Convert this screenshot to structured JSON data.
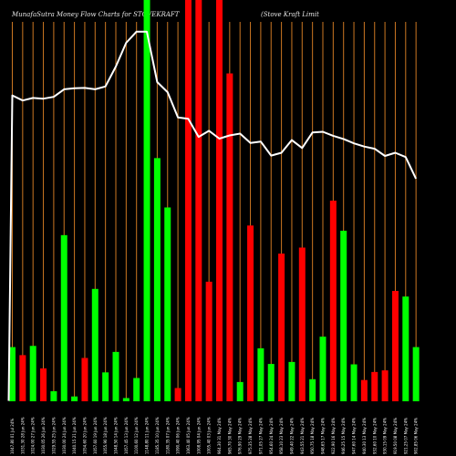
{
  "title": {
    "left": "MunafaSutra  Money Flow  Charts for STOVEKRAFT",
    "right": "(Stove    Kraft Limit"
  },
  "colors": {
    "background": "#000000",
    "positive": "#00ff00",
    "negative": "#ff0000",
    "grid": "#cc7722",
    "price_line": "#ffffff"
  },
  "chart_data": {
    "type": "bar",
    "title": "MunafaSutra  Money Flow  Charts for STOVEKRAFT (Stove    Kraft Limit",
    "grid": true,
    "bar_ylim": [
      0,
      100
    ],
    "line_ylim": [
      0,
      100
    ],
    "categories": [
      "1047.80  01 Jul 24%",
      "1031.30  28 Jun 24%",
      "1024.00  27 Jun 24%",
      "1030.05  26 Jun 24%",
      "1029.55  25 Jun 24%",
      "1030.00  24 Jun 24%",
      "1040.15  21 Jun 24%",
      "1054.60  20 Jun 24%",
      "1057.60  19 Jun 24%",
      "1055.90  18 Jun 24%",
      "1048.50  14 Jun 24%",
      "1057.45  13 Jun 24%",
      "1100.60  12 Jun 24%",
      "1148.80  11 Jun 24%",
      "1185.35  10 Jun 24%",
      "1180.35  07 Jun 24%",
      "1090.40  06 Jun 24%",
      "1063.40  05 Jun 24%",
      "1008.95  04 Jun 24%",
      "1005.40  03 Jun 24%",
      "964.30  31 May 24%",
      "965.70  30 May 24%",
      "976.90  29 May 24%",
      "975.35  28 May 24%",
      "971.05  27 May 24%",
      "954.60  24 May 24%",
      "958.10  23 May 24%",
      "949.40  22 May 24%",
      "943.55  21 May 24%",
      "950.75  18 May 24%",
      "948.65  17 May 24%",
      "922.90  16 May 24%",
      "946.25  15 May 24%",
      "947.60  14 May 24%",
      "940.30  13 May 24%",
      "932.60  10 May 24%",
      "930.15  09 May 24%",
      "919.50  08 May 24%",
      "921.25  07 May 24%",
      "902.85  06 May 24%"
    ],
    "values": [
      13.5,
      11.5,
      13.8,
      8.2,
      2.5,
      41.4,
      1.2,
      10.8,
      28.0,
      7.2,
      12.3,
      0.8,
      5.8,
      100.0,
      60.6,
      48.3,
      3.3,
      100.0,
      100.0,
      29.8,
      100.0,
      81.7,
      4.8,
      43.8,
      13.2,
      9.3,
      36.8,
      9.8,
      38.3,
      5.5,
      16.1,
      50.0,
      42.5,
      9.2,
      5.3,
      7.3,
      7.7,
      27.5,
      26.1,
      13.5
    ],
    "direction": [
      "up",
      "down",
      "up",
      "down",
      "up",
      "up",
      "up",
      "down",
      "up",
      "up",
      "up",
      "up",
      "up",
      "up",
      "up",
      "up",
      "down",
      "down",
      "down",
      "down",
      "down",
      "down",
      "up",
      "down",
      "up",
      "up",
      "down",
      "up",
      "down",
      "up",
      "up",
      "down",
      "up",
      "up",
      "down",
      "down",
      "down",
      "down",
      "up",
      "up"
    ],
    "price_line": [
      84.9,
      83.5,
      84.2,
      84.0,
      84.5,
      86.6,
      86.9,
      87.0,
      86.6,
      87.4,
      92.9,
      99.5,
      102.6,
      102.6,
      88.6,
      85.8,
      78.8,
      78.4,
      73.4,
      75.1,
      72.9,
      73.8,
      74.3,
      71.7,
      72.1,
      68.2,
      69.0,
      72.5,
      70.3,
      74.6,
      74.8,
      73.7,
      72.8,
      71.6,
      70.7,
      70.1,
      68.1,
      69.0,
      67.8,
      61.8
    ]
  }
}
